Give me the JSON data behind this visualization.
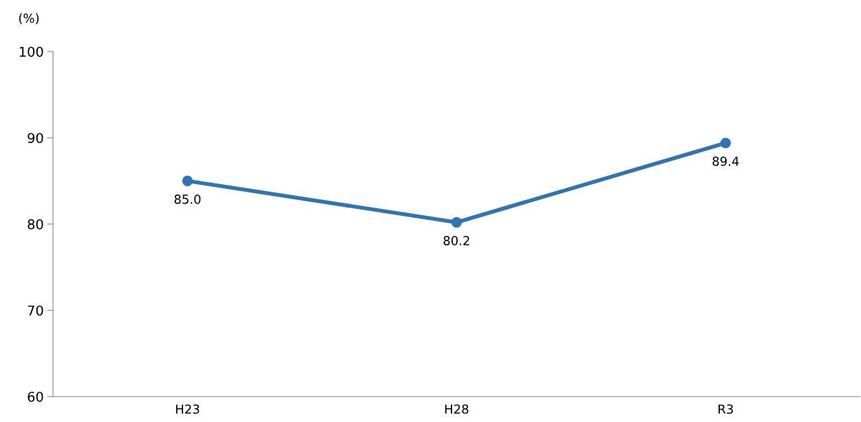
{
  "chart_data": {
    "type": "line",
    "ylabel": "(%)",
    "categories": [
      "H23",
      "H28",
      "R3"
    ],
    "series": [
      {
        "color": "#2e75b6",
        "values": [
          85.0,
          80.2,
          89.4
        ],
        "value_labels": [
          "85.0",
          "80.2",
          "89.4"
        ]
      }
    ],
    "ylim": [
      60,
      100
    ],
    "yticks": [
      60,
      70,
      80,
      90,
      100
    ],
    "marker": "circle",
    "line_style": "solid",
    "grid": false,
    "legend": false
  }
}
